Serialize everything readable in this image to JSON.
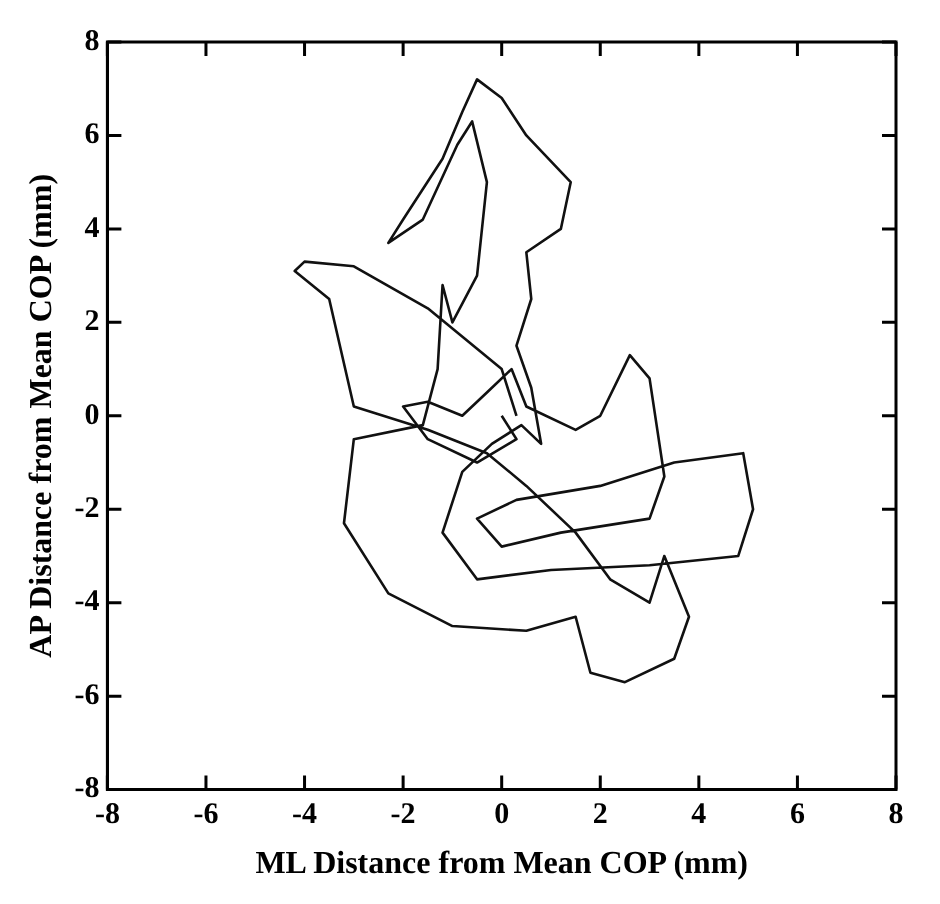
{
  "chart_data": {
    "type": "line",
    "xlabel": "ML Distance from Mean COP (mm)",
    "ylabel": "AP Distance from Mean COP (mm)",
    "xlim": [
      -8,
      8
    ],
    "ylim": [
      -8,
      8
    ],
    "xticks": [
      -8,
      -6,
      -4,
      -2,
      0,
      2,
      4,
      6,
      8
    ],
    "yticks": [
      -8,
      -6,
      -4,
      -2,
      0,
      2,
      4,
      6,
      8
    ],
    "grid": false,
    "legend": false,
    "marker": "none",
    "line_style": "solid",
    "series": [
      {
        "color": "#111111",
        "x": [
          0,
          0.3,
          -0.5,
          -1.5,
          -2,
          -1.5,
          -0.8,
          -0.3,
          0.2,
          0.5,
          1.5,
          2,
          2.6,
          3,
          3.3,
          3,
          1.2,
          0,
          -0.5,
          0.3,
          2,
          3.5,
          4.9,
          5.1,
          4.8,
          3,
          1,
          -0.5,
          -1.2,
          -0.8,
          -0.2,
          0.4,
          0.8,
          0.6,
          0.3,
          0.6,
          0.5,
          1.2,
          1.4,
          0.5,
          0,
          -0.5,
          -0.8,
          -1.2,
          -2,
          -2.3,
          -1.6,
          -0.9,
          -0.6,
          -0.3,
          -0.5,
          -1,
          -1.2,
          -1.3,
          -1.6,
          -3,
          -3.2,
          -2.3,
          -1,
          0.5,
          1.5,
          1.8,
          2.5,
          3.5,
          3.8,
          3.3,
          3,
          2.2,
          1.5,
          0.5,
          -0.3,
          -1.5,
          -3,
          -3.5,
          -4.2,
          -4,
          -3,
          -1.5,
          0,
          0.3
        ],
        "values": [
          0,
          -0.5,
          -1,
          -0.5,
          0.2,
          0.3,
          0,
          0.5,
          1,
          0.2,
          -0.3,
          0,
          1.3,
          0.8,
          -1.3,
          -2.2,
          -2.5,
          -2.8,
          -2.2,
          -1.8,
          -1.5,
          -1,
          -0.8,
          -2,
          -3,
          -3.2,
          -3.3,
          -3.5,
          -2.5,
          -1.2,
          -0.6,
          -0.2,
          -0.6,
          0.6,
          1.5,
          2.5,
          3.5,
          4,
          5,
          6,
          6.8,
          7.2,
          6.5,
          5.5,
          4.2,
          3.7,
          4.2,
          5.8,
          6.3,
          5,
          3,
          2,
          2.8,
          1,
          -0.2,
          -0.5,
          -2.3,
          -3.8,
          -4.5,
          -4.6,
          -4.3,
          -5.5,
          -5.7,
          -5.2,
          -4.3,
          -3,
          -4,
          -3.5,
          -2.5,
          -1.5,
          -0.8,
          -0.3,
          0.2,
          2.5,
          3.1,
          3.3,
          3.2,
          2.3,
          1,
          0
        ]
      }
    ]
  }
}
